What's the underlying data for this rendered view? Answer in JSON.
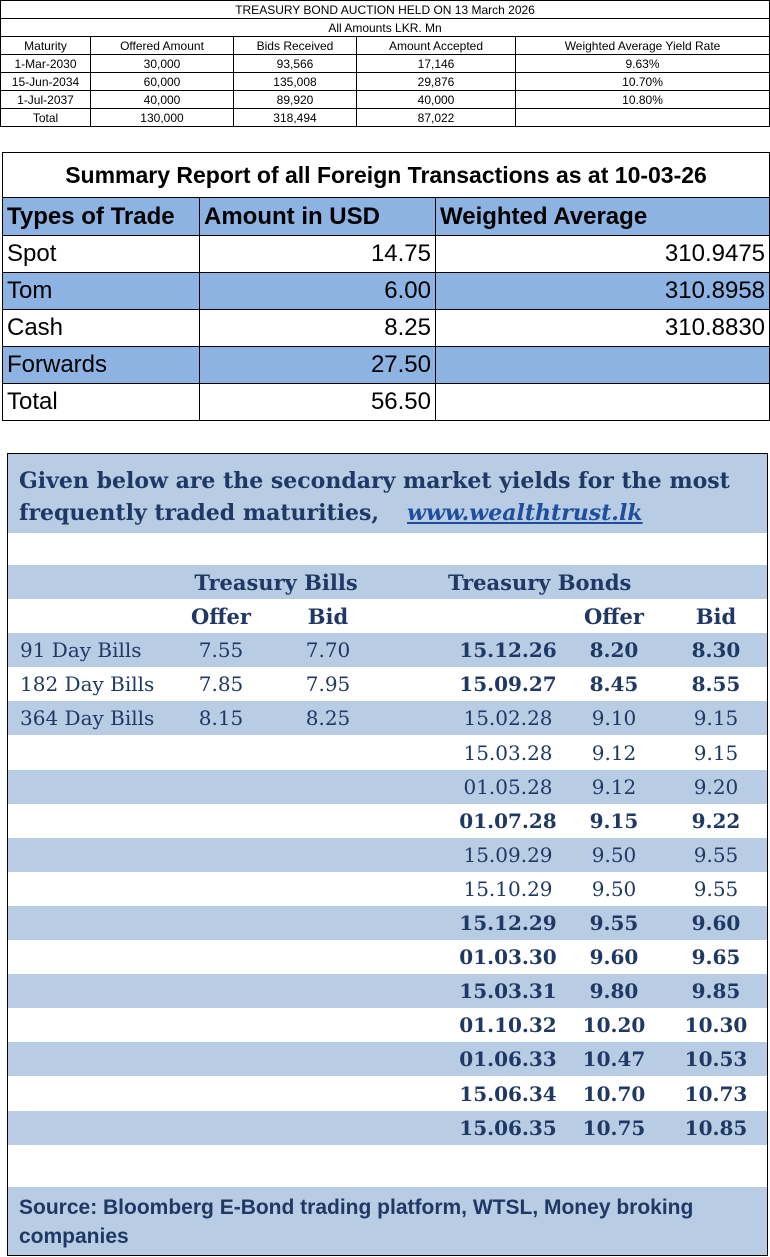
{
  "auction": {
    "title": "TREASURY BOND AUCTION HELD ON 13 March 2026",
    "subtitle": "All Amounts LKR. Mn",
    "headers": [
      "Maturity",
      "Offered Amount",
      "Bids Received",
      "Amount Accepted",
      "Weighted Average Yield Rate"
    ],
    "rows": [
      [
        "1-Mar-2030",
        "30,000",
        "93,566",
        "17,146",
        "9.63%"
      ],
      [
        "15-Jun-2034",
        "60,000",
        "135,008",
        "29,876",
        "10.70%"
      ],
      [
        "1-Jul-2037",
        "40,000",
        "89,920",
        "40,000",
        "10.80%"
      ],
      [
        "Total",
        "130,000",
        "318,494",
        "87,022",
        ""
      ]
    ]
  },
  "forex": {
    "title": "Summary Report of all Foreign Transactions as at 10-03-26",
    "headers": [
      "Types of Trade",
      "Amount in USD",
      "Weighted Average"
    ],
    "rows": [
      [
        "Spot",
        "14.75",
        "310.9475"
      ],
      [
        "Tom",
        "6.00",
        "310.8958"
      ],
      [
        "Cash",
        "8.25",
        "310.8830"
      ],
      [
        "Forwards",
        "27.50",
        ""
      ],
      [
        "Total",
        "56.50",
        ""
      ]
    ],
    "highlight_color": "#8db3e2"
  },
  "market": {
    "intro_line1": "Given below are the secondary market yields for the most",
    "intro_line2": "frequently traded maturities,",
    "link_text": "www.wealthtrust.lk",
    "bills_title": "Treasury Bills",
    "bonds_title": "Treasury Bonds",
    "offer_label": "Offer",
    "bid_label": "Bid",
    "bills": [
      [
        "91 Day Bills",
        "7.55",
        "7.70"
      ],
      [
        "182 Day Bills",
        "7.85",
        "7.95"
      ],
      [
        "364 Day Bills",
        "8.15",
        "8.25"
      ]
    ],
    "bonds": [
      {
        "maturity": "15.12.26",
        "offer": "8.20",
        "bid": "8.30",
        "bold": true
      },
      {
        "maturity": "15.09.27",
        "offer": "8.45",
        "bid": "8.55",
        "bold": true
      },
      {
        "maturity": "15.02.28",
        "offer": "9.10",
        "bid": "9.15",
        "bold": false
      },
      {
        "maturity": "15.03.28",
        "offer": "9.12",
        "bid": "9.15",
        "bold": false
      },
      {
        "maturity": "01.05.28",
        "offer": "9.12",
        "bid": "9.20",
        "bold": false
      },
      {
        "maturity": "01.07.28",
        "offer": "9.15",
        "bid": "9.22",
        "bold": true
      },
      {
        "maturity": "15.09.29",
        "offer": "9.50",
        "bid": "9.55",
        "bold": false
      },
      {
        "maturity": "15.10.29",
        "offer": "9.50",
        "bid": "9.55",
        "bold": false
      },
      {
        "maturity": "15.12.29",
        "offer": "9.55",
        "bid": "9.60",
        "bold": true
      },
      {
        "maturity": "01.03.30",
        "offer": "9.60",
        "bid": "9.65",
        "bold": true
      },
      {
        "maturity": "15.03.31",
        "offer": "9.80",
        "bid": "9.85",
        "bold": true
      },
      {
        "maturity": "01.10.32",
        "offer": "10.20",
        "bid": "10.30",
        "bold": true
      },
      {
        "maturity": "01.06.33",
        "offer": "10.47",
        "bid": "10.53",
        "bold": true
      },
      {
        "maturity": "15.06.34",
        "offer": "10.70",
        "bid": "10.73",
        "bold": true
      },
      {
        "maturity": "15.06.35",
        "offer": "10.75",
        "bid": "10.85",
        "bold": true
      }
    ],
    "source": "Source: Bloomberg E-Bond trading platform, WTSL, Money broking companies",
    "band_color": "#b8cce4",
    "text_color": "#1f3864"
  }
}
